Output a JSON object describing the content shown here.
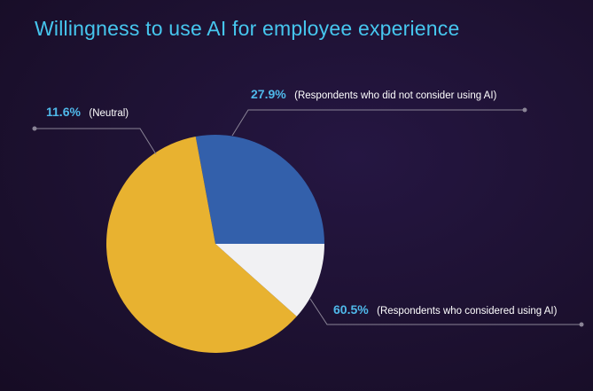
{
  "title": "Willingness to use AI for employee experience",
  "colors": {
    "background": "#1d1131",
    "title": "#46c6ee",
    "value_label": "#4fb9ea",
    "leader_line": "#8a8496"
  },
  "chart_data": {
    "type": "pie",
    "title": "Willingness to use AI for employee experience",
    "slices": [
      {
        "label": "Respondents who did not consider using AI",
        "value": 27.9,
        "value_text": "27.9%",
        "label_text": "(Respondents who did not consider using AI)",
        "color": "#3360ab"
      },
      {
        "label": "Respondents who considered using AI",
        "value": 60.5,
        "value_text": "60.5%",
        "label_text": "(Respondents who considered using AI)",
        "color": "#e8b230"
      },
      {
        "label": "Neutral",
        "value": 11.6,
        "value_text": "11.6%",
        "label_text": "(Neutral)",
        "color": "#f1f1f3"
      }
    ],
    "start_angle": "right (3 o'clock), proceeding counter-clockwise",
    "legend": "none (direct labels with leader lines)"
  }
}
